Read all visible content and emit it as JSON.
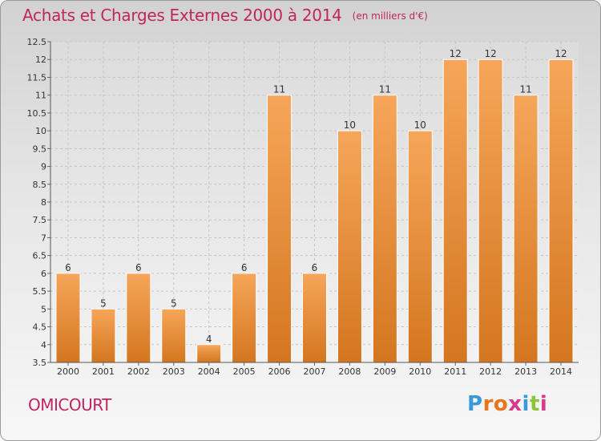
{
  "title": "Achats et Charges Externes 2000 à 2014",
  "unit": "(en milliers d'€)",
  "commune": "OMICOURT",
  "logo": "Proxiti",
  "colors": {
    "title": "#c0265e",
    "bar_top": "#f6a65a",
    "bar_bottom": "#d4761f"
  },
  "chart_data": {
    "type": "bar",
    "title": "Achats et Charges Externes 2000 à 2014",
    "subtitle": "(en milliers d'€)",
    "xlabel": "",
    "ylabel": "",
    "categories": [
      "2000",
      "2001",
      "2002",
      "2003",
      "2004",
      "2005",
      "2006",
      "2007",
      "2008",
      "2009",
      "2010",
      "2011",
      "2012",
      "2013",
      "2014"
    ],
    "values": [
      6,
      5,
      6,
      5,
      4,
      6,
      11,
      6,
      10,
      11,
      10,
      12,
      12,
      11,
      12
    ],
    "ylim": [
      3.5,
      12.5
    ],
    "yticks": [
      "3.5",
      "4",
      "4.5",
      "5",
      "5.5",
      "6",
      "6.5",
      "7",
      "7.5",
      "8",
      "8.5",
      "9",
      "9.5",
      "10",
      "10.5",
      "11",
      "11.5",
      "12",
      "12.5"
    ],
    "grid": true,
    "legend": "none"
  }
}
